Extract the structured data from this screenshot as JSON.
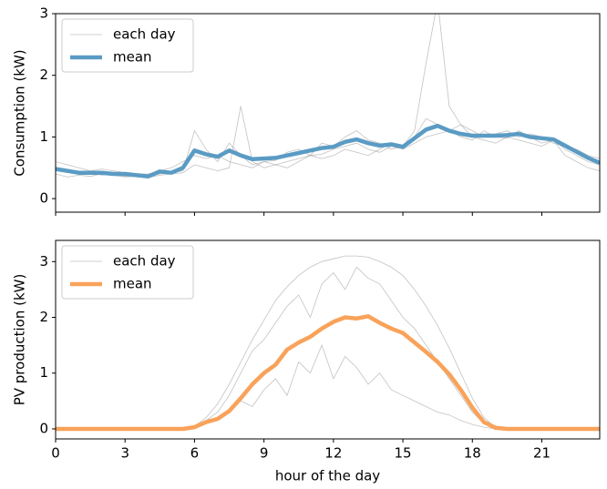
{
  "chart_data": [
    {
      "type": "line",
      "ylabel": "Consumption (kW)",
      "legend": "upper left",
      "x": [
        0,
        0.5,
        1,
        1.5,
        2,
        2.5,
        3,
        3.5,
        4,
        4.5,
        5,
        5.5,
        6,
        6.5,
        7,
        7.5,
        8,
        8.5,
        9,
        9.5,
        10,
        10.5,
        11,
        11.5,
        12,
        12.5,
        13,
        13.5,
        14,
        14.5,
        15,
        15.5,
        16,
        16.5,
        17,
        17.5,
        18,
        18.5,
        19,
        19.5,
        20,
        20.5,
        21,
        21.5,
        22,
        22.5,
        23,
        23.5
      ],
      "xlim": [
        0,
        23.5
      ],
      "xticks": [
        0,
        3,
        6,
        9,
        12,
        15,
        18,
        21
      ],
      "ylim": [
        -0.22,
        3
      ],
      "yticks": [
        0,
        1,
        2,
        3
      ],
      "series": [
        {
          "name": "each day",
          "color": "#999999",
          "lines": [
            [
              0.5,
              0.45,
              0.4,
              0.42,
              0.38,
              0.4,
              0.36,
              0.38,
              0.35,
              0.4,
              0.42,
              0.45,
              1.1,
              0.8,
              0.6,
              0.9,
              0.7,
              0.55,
              0.6,
              0.62,
              0.75,
              0.8,
              0.7,
              0.9,
              0.85,
              1.0,
              1.1,
              0.95,
              0.9,
              0.8,
              0.85,
              1.0,
              1.3,
              1.2,
              1.1,
              1.0,
              0.95,
              1.1,
              1.0,
              0.98,
              1.1,
              1.0,
              0.9,
              0.95,
              0.8,
              0.7,
              0.6,
              0.55
            ],
            [
              0.6,
              0.55,
              0.5,
              0.45,
              0.48,
              0.45,
              0.42,
              0.4,
              0.4,
              0.45,
              0.5,
              0.6,
              0.7,
              0.65,
              0.7,
              0.6,
              0.55,
              0.5,
              0.6,
              0.55,
              0.6,
              0.65,
              0.7,
              0.72,
              0.8,
              0.85,
              0.9,
              0.8,
              0.75,
              0.85,
              0.8,
              0.9,
              1.0,
              1.05,
              1.1,
              1.2,
              1.1,
              1.0,
              1.05,
              1.1,
              1.0,
              1.05,
              1.0,
              0.9,
              0.85,
              0.8,
              0.7,
              0.65
            ],
            [
              0.4,
              0.35,
              0.38,
              0.36,
              0.4,
              0.38,
              0.35,
              0.36,
              0.34,
              0.38,
              0.4,
              0.42,
              0.55,
              0.5,
              0.45,
              0.5,
              1.5,
              0.6,
              0.5,
              0.55,
              0.5,
              0.6,
              0.7,
              0.65,
              0.7,
              0.8,
              0.75,
              0.7,
              0.8,
              0.9,
              0.85,
              1.1,
              2.2,
              3.2,
              1.5,
              1.2,
              1.0,
              0.95,
              0.9,
              1.0,
              0.95,
              0.9,
              0.85,
              0.95,
              0.7,
              0.6,
              0.5,
              0.45
            ]
          ]
        },
        {
          "name": "mean",
          "color": "#5a9bc4",
          "values": [
            0.48,
            0.45,
            0.42,
            0.42,
            0.42,
            0.4,
            0.4,
            0.38,
            0.36,
            0.44,
            0.42,
            0.5,
            0.78,
            0.72,
            0.68,
            0.78,
            0.7,
            0.64,
            0.65,
            0.66,
            0.7,
            0.74,
            0.78,
            0.82,
            0.84,
            0.92,
            0.96,
            0.9,
            0.86,
            0.88,
            0.84,
            0.98,
            1.12,
            1.18,
            1.1,
            1.05,
            1.02,
            1.02,
            1.02,
            1.03,
            1.05,
            1.0,
            0.98,
            0.96,
            0.86,
            0.76,
            0.66,
            0.58
          ]
        }
      ]
    },
    {
      "type": "line",
      "ylabel": "PV production (kW)",
      "xlabel": "hour of the day",
      "legend": "upper left",
      "x": [
        0,
        0.5,
        1,
        1.5,
        2,
        2.5,
        3,
        3.5,
        4,
        4.5,
        5,
        5.5,
        6,
        6.5,
        7,
        7.5,
        8,
        8.5,
        9,
        9.5,
        10,
        10.5,
        11,
        11.5,
        12,
        12.5,
        13,
        13.5,
        14,
        14.5,
        15,
        15.5,
        16,
        16.5,
        17,
        17.5,
        18,
        18.5,
        19,
        19.5,
        20,
        20.5,
        21,
        21.5,
        22,
        22.5,
        23,
        23.5
      ],
      "xlim": [
        0,
        23.5
      ],
      "xticks": [
        0,
        3,
        6,
        9,
        12,
        15,
        18,
        21
      ],
      "ylim": [
        -0.18,
        3.38
      ],
      "yticks": [
        0,
        1,
        2,
        3
      ],
      "series": [
        {
          "name": "each day",
          "color": "#999999",
          "lines": [
            [
              0,
              0,
              0,
              0,
              0,
              0,
              0,
              0,
              0,
              0,
              0,
              0,
              0.05,
              0.2,
              0.45,
              0.8,
              1.2,
              1.6,
              1.95,
              2.3,
              2.55,
              2.75,
              2.9,
              3.0,
              3.05,
              3.1,
              3.1,
              3.08,
              3.0,
              2.9,
              2.75,
              2.5,
              2.2,
              1.85,
              1.45,
              1.0,
              0.55,
              0.2,
              0.03,
              0,
              0,
              0,
              0,
              0,
              0,
              0,
              0,
              0
            ],
            [
              0,
              0,
              0,
              0,
              0,
              0,
              0,
              0,
              0,
              0,
              0,
              0,
              0.02,
              0.1,
              0.2,
              0.35,
              0.5,
              0.4,
              0.7,
              0.9,
              0.6,
              1.2,
              1.0,
              1.5,
              0.9,
              1.3,
              1.1,
              0.8,
              1.0,
              0.7,
              0.6,
              0.5,
              0.4,
              0.3,
              0.25,
              0.15,
              0.08,
              0.03,
              0,
              0,
              0,
              0,
              0,
              0,
              0,
              0,
              0,
              0
            ],
            [
              0,
              0,
              0,
              0,
              0,
              0,
              0,
              0,
              0,
              0,
              0,
              0,
              0.04,
              0.15,
              0.3,
              0.6,
              1.0,
              1.4,
              1.6,
              1.9,
              2.2,
              2.4,
              2.0,
              2.6,
              2.8,
              2.5,
              2.9,
              2.7,
              2.6,
              2.3,
              2.0,
              1.8,
              1.5,
              1.2,
              0.9,
              0.6,
              0.3,
              0.1,
              0.02,
              0,
              0,
              0,
              0,
              0,
              0,
              0,
              0,
              0
            ]
          ]
        },
        {
          "name": "mean",
          "color": "#f9a25a",
          "values": [
            0,
            0,
            0,
            0,
            0,
            0,
            0,
            0,
            0,
            0,
            0,
            0,
            0.03,
            0.12,
            0.18,
            0.32,
            0.55,
            0.8,
            1.0,
            1.15,
            1.42,
            1.55,
            1.65,
            1.8,
            1.92,
            2.0,
            1.98,
            2.02,
            1.9,
            1.8,
            1.72,
            1.55,
            1.38,
            1.2,
            0.98,
            0.7,
            0.38,
            0.12,
            0.02,
            0,
            0,
            0,
            0,
            0,
            0,
            0,
            0,
            0
          ]
        }
      ]
    }
  ]
}
